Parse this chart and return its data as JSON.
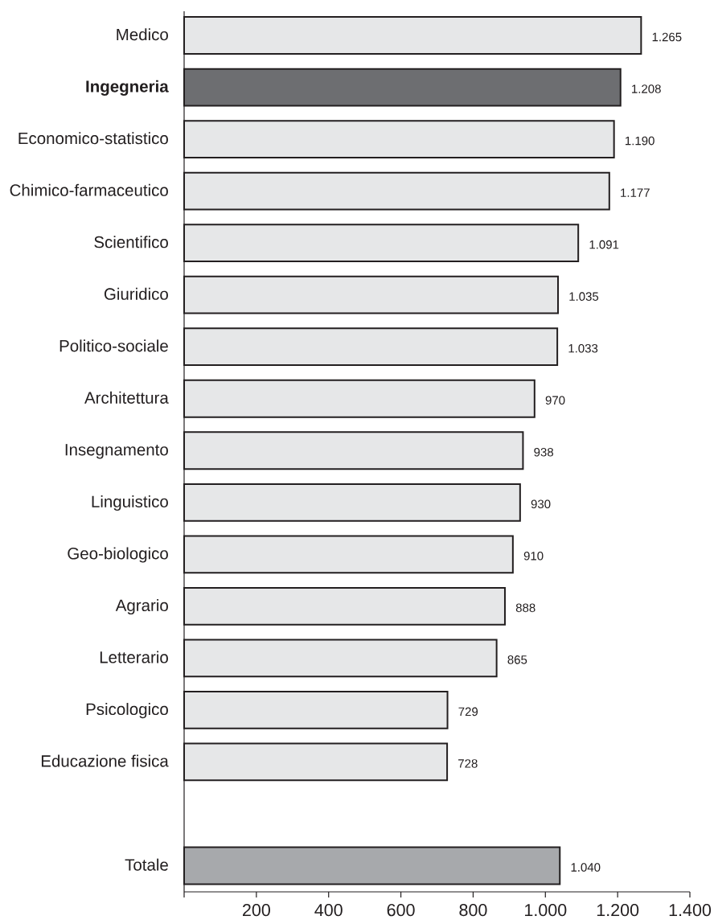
{
  "chart_data": {
    "type": "bar",
    "orientation": "horizontal",
    "categories": [
      "Medico",
      "**Ingegneria**",
      "Economico-statistico",
      "Chimico-farmaceutico",
      "Scientifico",
      "Giuridico",
      "Politico-sociale",
      "Architettura",
      "Insegnamento",
      "Linguistico",
      "Geo-biologico",
      "Agrario",
      "Letterario",
      "Psicologico",
      "Educazione fisica",
      null,
      "Totale"
    ],
    "values": [
      1265,
      1208,
      1190,
      1177,
      1091,
      1035,
      1033,
      970,
      938,
      930,
      910,
      888,
      865,
      729,
      728,
      null,
      1040
    ],
    "colors": [
      "#e6e7e8",
      "#6d6e71",
      "#e6e7e8",
      "#e6e7e8",
      "#e6e7e8",
      "#e6e7e8",
      "#e6e7e8",
      "#e6e7e8",
      "#e6e7e8",
      "#e6e7e8",
      "#e6e7e8",
      "#e6e7e8",
      "#e6e7e8",
      "#e6e7e8",
      "#e6e7e8",
      null,
      "#a7a9ac"
    ],
    "value_labels": [
      "1.265",
      "1.208",
      "1.190",
      "1.177",
      "1.091",
      "1.035",
      "1.033",
      "970",
      "938",
      "930",
      "910",
      "888",
      "865",
      "729",
      "728",
      null,
      "1.040"
    ],
    "xlim": [
      0,
      1400
    ],
    "xticks": [
      {
        "value": 0,
        "label": null
      },
      200,
      400,
      600,
      800,
      {
        "value": 1000,
        "label": "1.000"
      },
      {
        "value": 1200,
        "label": "1.200"
      },
      {
        "value": 1400,
        "label": "1.400"
      }
    ]
  }
}
